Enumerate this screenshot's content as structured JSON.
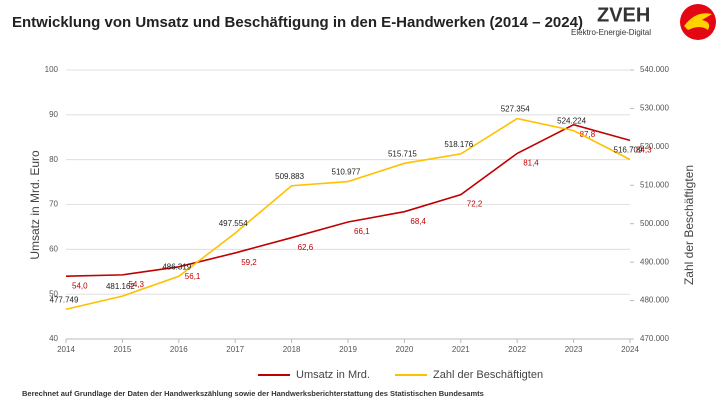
{
  "chart_data": {
    "type": "line",
    "title": "Entwicklung von Umsatz und Beschäftigung in den E-Handwerken (2014 – 2024)",
    "logo_title": "ZVEH",
    "logo_subtitle": "Elektro-Energie-Digital",
    "footnote": "Berechnet auf Grundlage der Daten der Handwerkszählung sowie der Handwerksberichterstattung des Statistischen Bundesamts",
    "ylabel": "Umsatz in Mrd. Euro",
    "y2label": "Zahl der Beschäftigten",
    "x": [
      2014,
      2015,
      2016,
      2017,
      2018,
      2019,
      2020,
      2021,
      2022,
      2023,
      2024
    ],
    "xlim": [
      2014,
      2024
    ],
    "xticks": [
      2014,
      2015,
      2016,
      2017,
      2018,
      2019,
      2020,
      2021,
      2022,
      2023,
      2024
    ],
    "ylim": [
      40,
      100
    ],
    "yticks": [
      40,
      50,
      60,
      70,
      80,
      90,
      100
    ],
    "y2lim": [
      470000,
      540000
    ],
    "y2ticks": [
      {
        "value": 470000,
        "label": "470.000"
      },
      {
        "value": 480000,
        "label": "480.000"
      },
      {
        "value": 490000,
        "label": "490.000"
      },
      {
        "value": 500000,
        "label": "500.000"
      },
      {
        "value": 510000,
        "label": "510.000"
      },
      {
        "value": 520000,
        "label": "520.000"
      },
      {
        "value": 530000,
        "label": "530.000"
      },
      {
        "value": 540000,
        "label": "540.000"
      }
    ],
    "grid": true,
    "series": [
      {
        "name": "Umsatz in Mrd.",
        "color": "#c00000",
        "values": [
          54.0,
          54.3,
          56.1,
          59.2,
          62.6,
          66.1,
          68.4,
          72.2,
          81.4,
          87.8,
          84.3
        ],
        "value_labels": [
          "54,0",
          "54,3",
          "56,1",
          "59,2",
          "62,6",
          "66,1",
          "68,4",
          "72,2",
          "81,4",
          "87,8",
          "84,3"
        ]
      },
      {
        "name": "Zahl der Beschäftigten",
        "color": "#ffc000",
        "axis": "y2",
        "values": [
          477749,
          481162,
          486319,
          497554,
          509883,
          510977,
          515715,
          518176,
          527354,
          524224,
          516709
        ],
        "value_labels": [
          "477.749",
          "481.162",
          "486.319",
          "497.554",
          "509.883",
          "510.977",
          "515.715",
          "518.176",
          "527.354",
          "524.224",
          "516.709"
        ]
      }
    ]
  }
}
